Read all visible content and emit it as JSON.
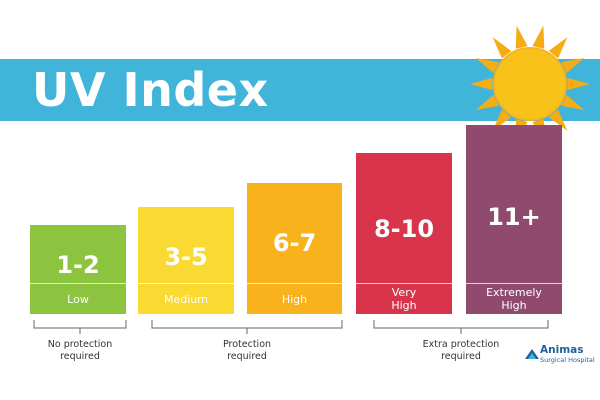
{
  "header": {
    "title": "UV Index"
  },
  "levels": [
    {
      "range": "1-2",
      "label": "Low",
      "color": "#8cc43f"
    },
    {
      "range": "3-5",
      "label": "Medium",
      "color": "#fad933"
    },
    {
      "range": "6-7",
      "label": "High",
      "color": "#f8b21b"
    },
    {
      "range": "8-10",
      "label": "Very\nHigh",
      "color": "#d8354c"
    },
    {
      "range": "11+",
      "label": "Extremely\nHigh",
      "color": "#8f4a6e"
    }
  ],
  "groups": [
    {
      "text": "No protection\nrequired"
    },
    {
      "text": "Protection\nrequired"
    },
    {
      "text": "Extra protection\nrequired"
    }
  ],
  "logo": {
    "name": "Animas",
    "subname": "Surgical Hospital"
  },
  "colors": {
    "banner": "#41b4da",
    "sun": "#f8c21a",
    "sun_rays": "#f6ad15"
  }
}
